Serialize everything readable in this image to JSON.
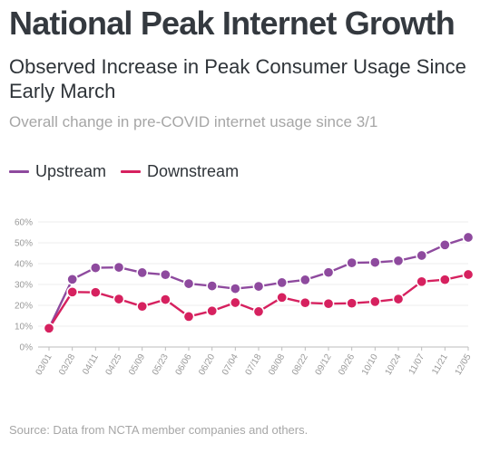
{
  "title": "National Peak Internet Growth",
  "subtitle": "Observed Increase in Peak Consumer Usage Since Early March",
  "note": "Overall change in pre-COVID internet usage since 3/1",
  "source": "Source: Data from NCTA member companies and others.",
  "colors": {
    "upstream": "#8e4a9e",
    "downstream": "#d6215f",
    "grid": "#eeeeee",
    "axis": "#bdbdbd"
  },
  "chart_data": {
    "type": "line",
    "categories": [
      "03/01",
      "03/28",
      "04/11",
      "04/25",
      "05/09",
      "05/23",
      "06/06",
      "06/20",
      "07/04",
      "07/18",
      "08/08",
      "08/22",
      "09/12",
      "09/26",
      "10/10",
      "10/24",
      "11/07",
      "11/21",
      "12/05"
    ],
    "series": [
      {
        "name": "Upstream",
        "color": "#8e4a9e",
        "values": [
          9.0,
          32.5,
          38.0,
          38.2,
          35.7,
          34.7,
          30.4,
          29.3,
          28.0,
          29.1,
          30.9,
          32.2,
          35.8,
          40.4,
          40.6,
          41.4,
          43.9,
          49.0,
          52.6
        ]
      },
      {
        "name": "Downstream",
        "color": "#d6215f",
        "values": [
          9.0,
          26.4,
          26.2,
          23.0,
          19.5,
          22.8,
          14.6,
          17.3,
          21.3,
          17.0,
          23.8,
          21.2,
          20.8,
          21.0,
          21.8,
          23.0,
          31.4,
          32.3,
          34.8
        ]
      }
    ],
    "y_ticks": [
      "0%",
      "10%",
      "20%",
      "30%",
      "40%",
      "50%",
      "60%"
    ],
    "ylim": [
      0,
      60
    ],
    "grid": true,
    "legend": "top-left"
  }
}
